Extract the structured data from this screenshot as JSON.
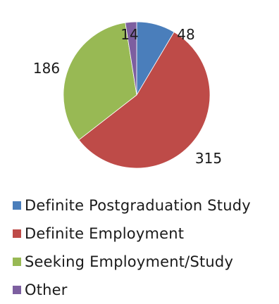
{
  "chart_data": {
    "type": "pie",
    "title": "",
    "categories": [
      "Definite Postgraduation Study",
      "Definite Employment",
      "Seeking Employment/Study",
      "Other"
    ],
    "values": [
      48,
      315,
      186,
      14
    ],
    "colors": [
      "#4a7ebb",
      "#be4b48",
      "#98b954",
      "#7d5fa0"
    ],
    "data_labels": [
      "48",
      "315",
      "186",
      "14"
    ],
    "legend_position": "bottom",
    "start_angle_deg": 0,
    "direction": "clockwise"
  }
}
